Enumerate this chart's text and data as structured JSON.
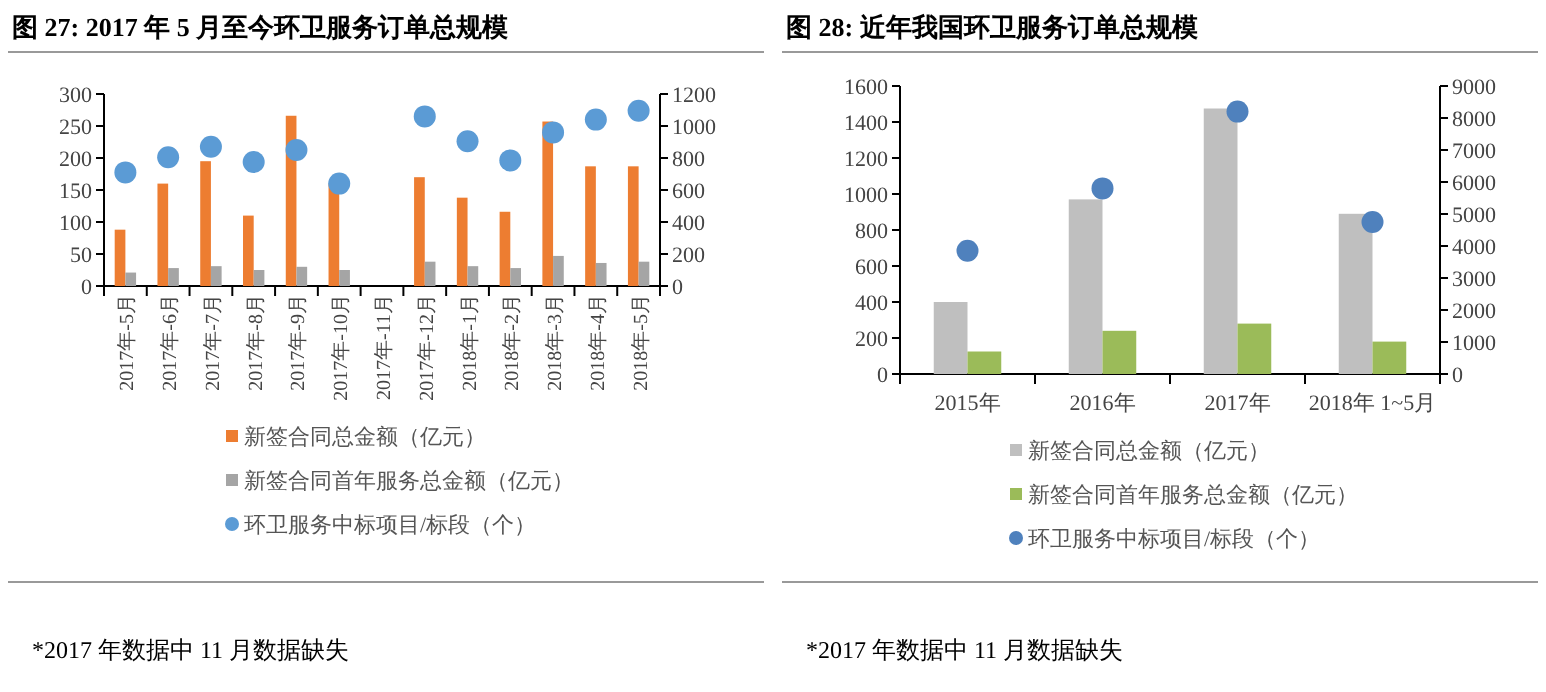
{
  "chart_data": [
    {
      "type": "bar",
      "title": "图 27: 2017 年 5 月至今环卫服务订单总规模",
      "categories": [
        "2017年-5月",
        "2017年-6月",
        "2017年-7月",
        "2017年-8月",
        "2017年-9月",
        "2017年-10月",
        "2017年-11月",
        "2017年-12月",
        "2018年-1月",
        "2018年-2月",
        "2018年-3月",
        "2018年-4月",
        "2018年-5月"
      ],
      "series": [
        {
          "name": "新签合同总金额（亿元）",
          "color": "#ed7d31",
          "values": [
            88,
            160,
            195,
            110,
            266,
            160,
            null,
            170,
            138,
            116,
            257,
            187,
            187
          ]
        },
        {
          "name": "新签合同首年服务总金额（亿元）",
          "color": "#a5a5a5",
          "values": [
            21,
            28,
            31,
            25,
            30,
            25,
            null,
            38,
            31,
            28,
            47,
            36,
            38
          ]
        },
        {
          "name": "环卫服务中标项目/标段（个）",
          "color": "#5b9bd5",
          "type": "scatter",
          "axis": "y2",
          "values": [
            710,
            805,
            870,
            775,
            850,
            640,
            null,
            1060,
            905,
            785,
            960,
            1040,
            1095
          ]
        }
      ],
      "marker": "circle",
      "ylim": [
        0,
        300
      ],
      "yticks": [
        0,
        50,
        100,
        150,
        200,
        250,
        300
      ],
      "y2lim": [
        0,
        1200
      ],
      "y2ticks": [
        0,
        200,
        400,
        600,
        800,
        1000,
        1200
      ],
      "legend": "bottom",
      "annotations": [
        "*2017 年数据中 11 月数据缺失"
      ]
    },
    {
      "type": "bar",
      "title": "图 28: 近年我国环卫服务订单总规模",
      "categories": [
        "2015年",
        "2016年",
        "2017年",
        "2018年 1~5月"
      ],
      "series": [
        {
          "name": "新签合同总金额（亿元）",
          "color": "#bfbfbf",
          "values": [
            400,
            970,
            1475,
            890
          ]
        },
        {
          "name": "新签合同首年服务总金额（亿元）",
          "color": "#9bbb59",
          "values": [
            125,
            240,
            280,
            180
          ]
        },
        {
          "name": "环卫服务中标项目/标段（个）",
          "color": "#4f81bd",
          "type": "scatter",
          "axis": "y2",
          "values": [
            3850,
            5800,
            8200,
            4750
          ]
        }
      ],
      "marker": "circle",
      "ylim": [
        0,
        1600
      ],
      "yticks": [
        0,
        200,
        400,
        600,
        800,
        1000,
        1200,
        1400,
        1600
      ],
      "y2lim": [
        0,
        9000
      ],
      "y2ticks": [
        0,
        1000,
        2000,
        3000,
        4000,
        5000,
        6000,
        7000,
        8000,
        9000
      ],
      "legend": "bottom",
      "annotations": [
        "*2017 年数据中 11 月数据缺失"
      ]
    }
  ]
}
